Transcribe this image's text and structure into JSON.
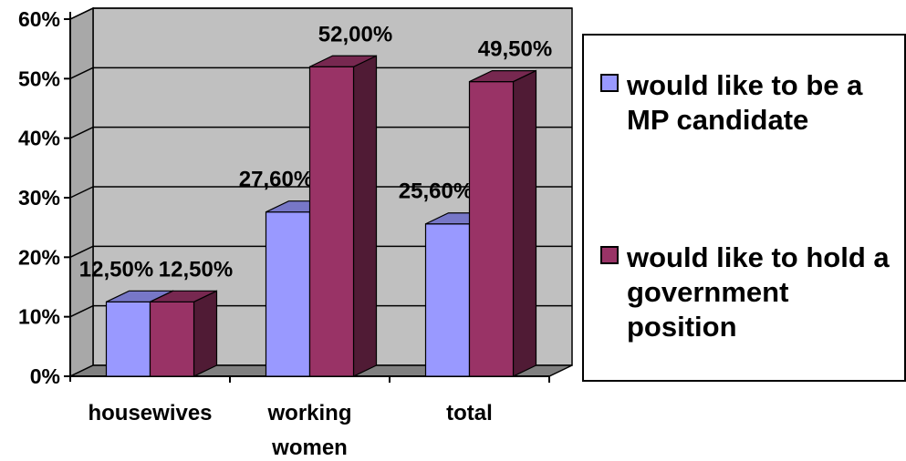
{
  "chart_data": {
    "type": "bar",
    "categories": [
      "housewives",
      "working\nwomen",
      "total"
    ],
    "series": [
      {
        "name": "would like to be a MP candidate",
        "values": [
          12.5,
          27.6,
          25.6
        ],
        "labels": [
          "12,50%",
          "27,60%",
          "25,60%"
        ],
        "color": "#9999FF"
      },
      {
        "name": "would like to hold a government position",
        "values": [
          12.5,
          52.0,
          49.5
        ],
        "labels": [
          "12,50%",
          "52,00%",
          "49,50%"
        ],
        "color": "#993366"
      }
    ],
    "y_ticks": [
      "0%",
      "10%",
      "20%",
      "30%",
      "40%",
      "50%",
      "60%"
    ],
    "ylim": [
      0,
      60
    ],
    "grid": true,
    "legend_position": "right",
    "three_d": true,
    "wall_color": "#C0C0C0",
    "floor_color": "#808080"
  }
}
